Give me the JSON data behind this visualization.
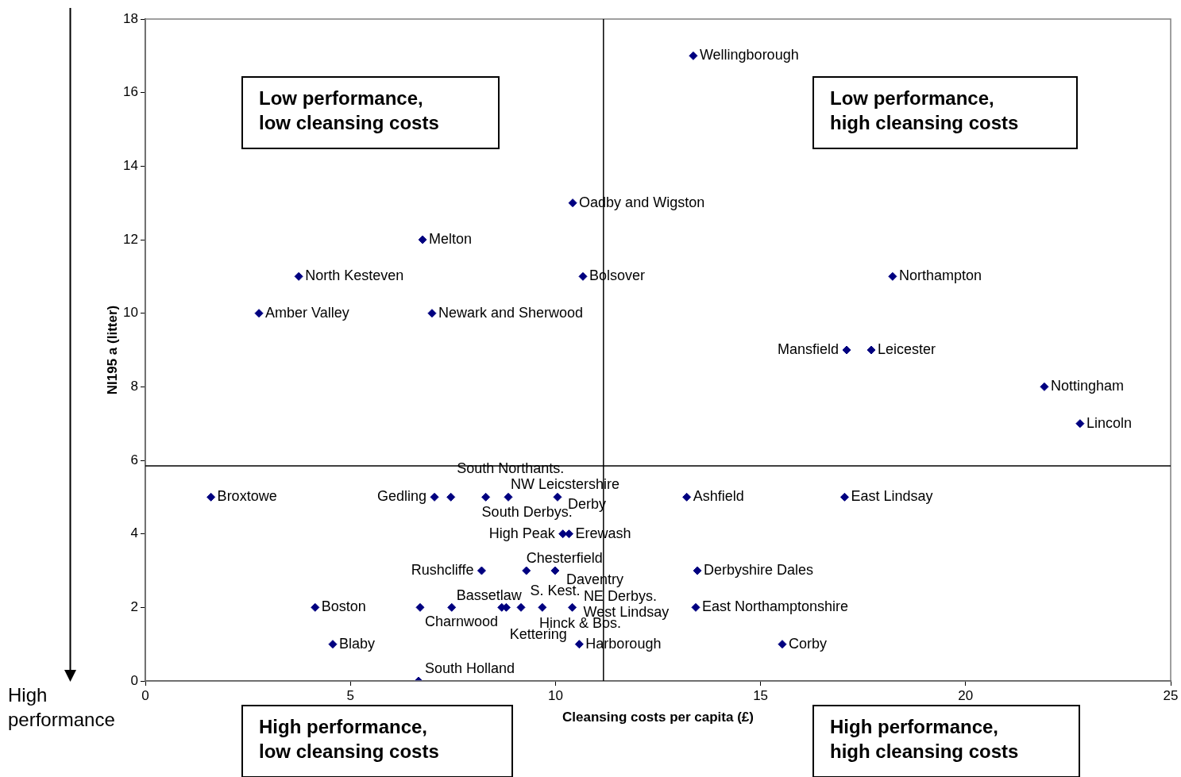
{
  "chart_data": {
    "type": "scatter",
    "xlabel": "Cleansing costs per capita (£)",
    "ylabel": "NI195 a (litter)",
    "xlim": [
      0,
      25
    ],
    "xticks": [
      0,
      5,
      10,
      15,
      20,
      25
    ],
    "ylim": [
      0,
      18
    ],
    "yticks": [
      0,
      2,
      4,
      6,
      8,
      10,
      12,
      14,
      16,
      18
    ],
    "grid": false,
    "legend": false,
    "marker": "diamond",
    "series": [
      {
        "color": "#000080",
        "x": [
          13.36,
          10.42,
          6.76,
          3.74,
          10.67,
          18.22,
          2.77,
          6.99,
          17.1,
          17.7,
          21.92,
          22.79,
          1.6,
          7.05,
          7.45,
          8.3,
          8.85,
          10.05,
          13.2,
          17.05,
          10.18,
          10.33,
          8.2,
          9.29,
          9.99,
          13.46,
          4.14,
          6.7,
          7.47,
          8.69,
          8.8,
          9.16,
          9.68,
          10.41,
          13.42,
          4.57,
          10.58,
          15.53,
          6.66
        ],
        "values": [
          17,
          13,
          12,
          11,
          11,
          11,
          10,
          10,
          9,
          9,
          8,
          7,
          5,
          5,
          5,
          5,
          5,
          5,
          5,
          5,
          4,
          4,
          3,
          3,
          3,
          3,
          2,
          2,
          2,
          2,
          2,
          2,
          2,
          2,
          2,
          1,
          1,
          1,
          0
        ]
      }
    ],
    "ref_lines": [
      {
        "axis": "y",
        "value": 5.85,
        "color": "#000000"
      },
      {
        "axis": "x",
        "value": 11.17,
        "color": "#000000"
      }
    ],
    "annotations": [
      {
        "text": "Wellingborough",
        "x": 13.36,
        "y": 17
      },
      {
        "text": "Oadby and Wigston",
        "x": 10.42,
        "y": 13
      },
      {
        "text": "Melton",
        "x": 6.76,
        "y": 12
      },
      {
        "text": "North Kesteven",
        "x": 3.74,
        "y": 11
      },
      {
        "text": "Bolsover",
        "x": 10.67,
        "y": 11
      },
      {
        "text": "Northampton",
        "x": 18.22,
        "y": 11
      },
      {
        "text": "Amber Valley",
        "x": 2.77,
        "y": 10
      },
      {
        "text": "Newark and Sherwood",
        "x": 6.99,
        "y": 10
      },
      {
        "text": "Mansfield",
        "x": 17.1,
        "y": 9
      },
      {
        "text": "Leicester",
        "x": 17.7,
        "y": 9
      },
      {
        "text": "Nottingham",
        "x": 21.92,
        "y": 8
      },
      {
        "text": "Lincoln",
        "x": 22.79,
        "y": 7
      },
      {
        "text": "Broxtowe",
        "x": 1.6,
        "y": 5
      },
      {
        "text": "Gedling",
        "x": 7.05,
        "y": 5
      },
      {
        "text": "South Northants.",
        "x": 7.45,
        "y": 5
      },
      {
        "text": "South Derbys.",
        "x": 8.3,
        "y": 5
      },
      {
        "text": "NW Leicstershire",
        "x": 8.85,
        "y": 5
      },
      {
        "text": "Derby",
        "x": 10.05,
        "y": 5
      },
      {
        "text": "Ashfield",
        "x": 13.2,
        "y": 5
      },
      {
        "text": "East Lindsay",
        "x": 17.05,
        "y": 5
      },
      {
        "text": "High Peak",
        "x": 10.18,
        "y": 4
      },
      {
        "text": "Erewash",
        "x": 10.33,
        "y": 4
      },
      {
        "text": "Rushcliffe",
        "x": 8.2,
        "y": 3
      },
      {
        "text": "Chesterfield",
        "x": 9.29,
        "y": 3
      },
      {
        "text": "Daventry",
        "x": 9.99,
        "y": 3
      },
      {
        "text": "Derbyshire Dales",
        "x": 13.46,
        "y": 3
      },
      {
        "text": "Boston",
        "x": 4.14,
        "y": 2
      },
      {
        "text": "Charnwood",
        "x": 6.7,
        "y": 2
      },
      {
        "text": "Bassetlaw",
        "x": 7.47,
        "y": 2
      },
      {
        "text": "Kettering",
        "x": 8.69,
        "y": 2
      },
      {
        "text": "S. Kest.",
        "x": 8.8,
        "y": 2
      },
      {
        "text": "Hinck & Bos.",
        "x": 9.16,
        "y": 2
      },
      {
        "text": "NE Derbys.",
        "x": 9.68,
        "y": 2
      },
      {
        "text": "West Lindsay",
        "x": 10.41,
        "y": 2
      },
      {
        "text": "East Northamptonshire",
        "x": 13.42,
        "y": 2
      },
      {
        "text": "Blaby",
        "x": 4.57,
        "y": 1
      },
      {
        "text": "Harborough",
        "x": 10.58,
        "y": 1
      },
      {
        "text": "Corby",
        "x": 15.53,
        "y": 1
      },
      {
        "text": "South Holland",
        "x": 6.66,
        "y": 0
      },
      "Low performance, low cleansing costs",
      "Low performance, high cleansing costs",
      "High performance, low cleansing costs",
      "High performance, high cleansing costs",
      "High performance"
    ]
  }
}
